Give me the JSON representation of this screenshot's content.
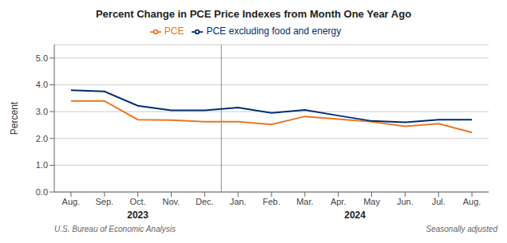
{
  "chart_data": {
    "type": "line",
    "title": "Percent Change in PCE Price Indexes from Month One Year Ago",
    "y_label": "Percent",
    "categories": [
      "Aug.",
      "Sep.",
      "Oct.",
      "Nov.",
      "Dec.",
      "Jan.",
      "Feb.",
      "Mar.",
      "Apr.",
      "May",
      "Jun.",
      "Jul.",
      "Aug."
    ],
    "series": [
      {
        "name": "PCE",
        "color": "#e87722",
        "values": [
          3.4,
          3.4,
          2.7,
          2.68,
          2.62,
          2.62,
          2.52,
          2.82,
          2.72,
          2.62,
          2.45,
          2.55,
          2.22
        ]
      },
      {
        "name": "PCE excluding food and energy",
        "color": "#002d72",
        "values": [
          3.8,
          3.75,
          3.22,
          3.05,
          3.05,
          3.15,
          2.95,
          3.06,
          2.85,
          2.65,
          2.6,
          2.7,
          2.7
        ]
      }
    ],
    "ylim": [
      0.0,
      5.5
    ],
    "yticks": [
      {
        "value": 0.0,
        "label": "0.0"
      },
      {
        "value": 1.0,
        "label": "1.0"
      },
      {
        "value": 2.0,
        "label": "2.0"
      },
      {
        "value": 3.0,
        "label": "3.0"
      },
      {
        "value": 4.0,
        "label": "4.0"
      },
      {
        "value": 5.0,
        "label": "5.0"
      }
    ],
    "grid": true,
    "annotations": [
      "2023",
      "2024"
    ],
    "source": "U.S. Bureau of Economic Analysis",
    "note": "Seasonally adjusted"
  }
}
